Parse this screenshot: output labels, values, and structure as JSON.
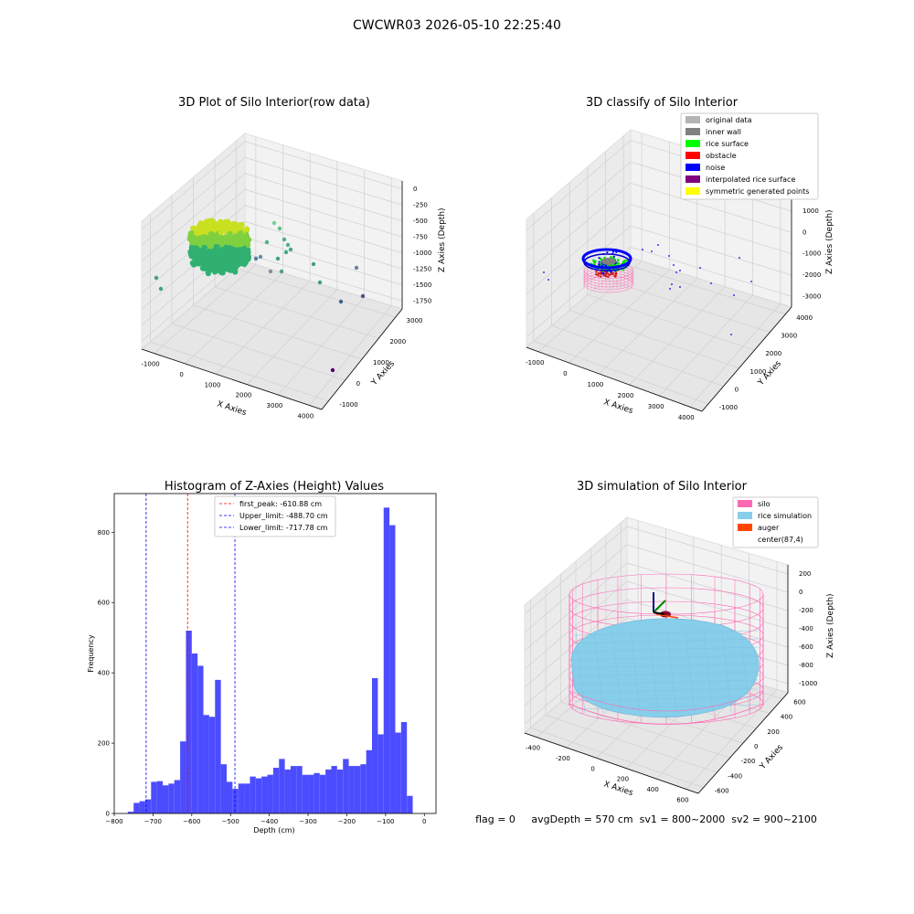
{
  "suptitle": "CWCWR03 2026-05-10 22:25:40",
  "status_line": "flag = 0     avgDepth = 570 cm  sv1 = 800~2000  sv2 = 900~2100",
  "colors": {
    "original": "#b3b3b3",
    "inner_wall": "#808080",
    "rice_surface": "#00ff00",
    "obstacle": "#ff0000",
    "noise": "#0000ff",
    "interpolated": "#800080",
    "symmetric": "#ffff00",
    "hist_bar": "#4c4cff",
    "silo": "#ff69b4",
    "rice_sim": "#87ceeb",
    "auger": "#ff4500"
  },
  "chart_data": [
    {
      "id": "raw3d",
      "type": "scatter",
      "title": "3D Plot of Silo Interior(row data)",
      "xlabel": "X Axies",
      "ylabel": "Y Axies",
      "zlabel": "Z Axies (Depth)",
      "x_ticks": [
        "-1000",
        "0",
        "1000",
        "2000",
        "3000",
        "4000"
      ],
      "y_ticks": [
        "-1000",
        "0",
        "1000",
        "2000",
        "3000"
      ],
      "z_ticks": [
        "0",
        "-250",
        "-500",
        "-750",
        "-1000",
        "-1250",
        "-1500",
        "-1750"
      ],
      "cluster": {
        "x_range": [
          -400,
          600
        ],
        "y_range": [
          -400,
          600
        ],
        "z_range": [
          -100,
          -1000
        ]
      }
    },
    {
      "id": "classify3d",
      "type": "scatter",
      "title": "3D classify of Silo Interior",
      "xlabel": "X Axies",
      "ylabel": "Y Axies",
      "zlabel": "Z Axies (Depth)",
      "x_ticks": [
        "-1000",
        "0",
        "1000",
        "2000",
        "3000",
        "4000"
      ],
      "y_ticks": [
        "-1000",
        "0",
        "1000",
        "2000",
        "3000",
        "4000"
      ],
      "z_ticks": [
        "2000",
        "1000",
        "0",
        "-1000",
        "-2000",
        "-3000"
      ],
      "legend_position": "upper-right",
      "legend": [
        {
          "label": "original data",
          "color": "#b3b3b3"
        },
        {
          "label": "inner wall",
          "color": "#808080"
        },
        {
          "label": "rice surface",
          "color": "#00ff00"
        },
        {
          "label": "obstacle",
          "color": "#ff0000"
        },
        {
          "label": "noise",
          "color": "#0000ff"
        },
        {
          "label": "interpolated rice surface",
          "color": "#800080"
        },
        {
          "label": "symmetric generated points",
          "color": "#ffff00"
        }
      ]
    },
    {
      "id": "hist",
      "type": "bar",
      "title": "Histogram of Z-Axies (Height) Values",
      "xlabel": "Depth (cm)",
      "ylabel": "Frequency",
      "xlim": [
        -800,
        30
      ],
      "ylim": [
        0,
        910
      ],
      "x_ticks": [
        -800,
        -700,
        -600,
        -500,
        -400,
        -300,
        -200,
        -100,
        0
      ],
      "y_ticks": [
        0,
        200,
        400,
        600,
        800
      ],
      "bin_start": -765,
      "bin_width": 15,
      "values": [
        5,
        30,
        35,
        40,
        90,
        92,
        80,
        85,
        95,
        205,
        520,
        455,
        420,
        280,
        275,
        380,
        140,
        90,
        70,
        85,
        85,
        105,
        100,
        105,
        110,
        130,
        155,
        125,
        135,
        135,
        110,
        110,
        115,
        110,
        125,
        135,
        125,
        155,
        135,
        135,
        140,
        180,
        385,
        225,
        870,
        820,
        230,
        260,
        50
      ],
      "lines": [
        {
          "label": "first_peak: -610.88 cm",
          "x": -610.88,
          "color": "#ff0000"
        },
        {
          "label": "Upper_limit: -488.70 cm",
          "x": -488.7,
          "color": "#0000ff"
        },
        {
          "label": "Lower_limit: -717.78 cm",
          "x": -717.78,
          "color": "#0000ff"
        }
      ]
    },
    {
      "id": "sim3d",
      "type": "scatter",
      "title": "3D simulation of Silo Interior",
      "xlabel": "X Axies",
      "ylabel": "Y Axies",
      "zlabel": "Z Axies (Depth)",
      "x_ticks": [
        "-400",
        "-200",
        "0",
        "200",
        "400",
        "600"
      ],
      "y_ticks": [
        "-600",
        "-400",
        "-200",
        "0",
        "200",
        "400",
        "600"
      ],
      "z_ticks": [
        "200",
        "0",
        "-200",
        "-400",
        "-600",
        "-800",
        "-1000"
      ],
      "legend_position": "upper-right",
      "legend": [
        {
          "label": "silo",
          "color": "#ff69b4"
        },
        {
          "label": "rice simulation",
          "color": "#87ceeb"
        },
        {
          "label": "auger",
          "color": "#ff4500"
        },
        {
          "label": "center(87,4)",
          "color": ""
        }
      ]
    }
  ]
}
